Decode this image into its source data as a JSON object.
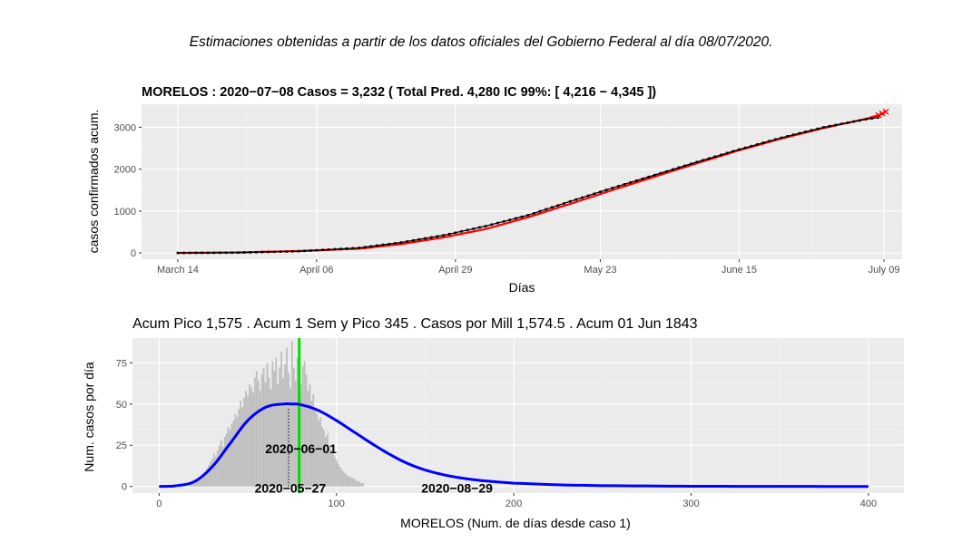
{
  "page": {
    "title": "Estimaciones obtenidas a partir de los datos oficiales del Gobierno Federal al día 08/07/2020."
  },
  "chart_data": [
    {
      "type": "line",
      "title": "MORELOS : 2020−07−08 Casos =  3,232 ( Total Pred. 4,280  IC 99%: [ 4,216 − 4,345 ])",
      "xlabel": "Días",
      "ylabel": "casos confirmados acum.",
      "x_ticks": [
        "March 14",
        "April 06",
        "April 29",
        "May 23",
        "June 15",
        "July 09"
      ],
      "y_ticks": [
        "0",
        "1000",
        "2000",
        "3000"
      ],
      "xlim": [
        "2020-03-08",
        "2020-07-12"
      ],
      "ylim": [
        -150,
        3550
      ],
      "grid": true,
      "series": [
        {
          "color": "#000000",
          "style": "points+line",
          "x": [
            "2020-03-14",
            "2020-03-24",
            "2020-04-03",
            "2020-04-13",
            "2020-04-20",
            "2020-04-27",
            "2020-05-04",
            "2020-05-11",
            "2020-05-18",
            "2020-05-25",
            "2020-06-01",
            "2020-06-08",
            "2020-06-15",
            "2020-06-22",
            "2020-06-29",
            "2020-07-06",
            "2020-07-08"
          ],
          "y": [
            0,
            8,
            40,
            120,
            250,
            420,
            640,
            900,
            1230,
            1550,
            1860,
            2170,
            2470,
            2750,
            3000,
            3190,
            3232
          ]
        },
        {
          "color": "#ff0000",
          "style": "line",
          "x": [
            "2020-03-14",
            "2020-03-24",
            "2020-04-03",
            "2020-04-13",
            "2020-04-20",
            "2020-04-27",
            "2020-05-04",
            "2020-05-11",
            "2020-05-18",
            "2020-05-25",
            "2020-06-01",
            "2020-06-08",
            "2020-06-15",
            "2020-06-22",
            "2020-06-29",
            "2020-07-06",
            "2020-07-09"
          ],
          "y": [
            0,
            12,
            45,
            100,
            210,
            370,
            570,
            850,
            1170,
            1500,
            1820,
            2140,
            2450,
            2730,
            2980,
            3200,
            3330
          ]
        }
      ]
    },
    {
      "type": "bar",
      "title": "Acum Pico 1,575 . Acum 1 Sem y Pico 345 . Casos por Mill 1,574.5 .  Acum 01 Jun  1843",
      "xlabel": "MORELOS  (Num. de días desde caso 1)",
      "ylabel": "Num. casos por día",
      "x_ticks": [
        "0",
        "100",
        "200",
        "300",
        "400"
      ],
      "y_ticks": [
        "0",
        "25",
        "50",
        "75"
      ],
      "xlim": [
        -15,
        420
      ],
      "ylim": [
        -4,
        90
      ],
      "grid": true,
      "bars_start_day": 18,
      "bars_color": "#bdbdbd",
      "bars": [
        1,
        2,
        2,
        3,
        4,
        5,
        6,
        8,
        9,
        11,
        13,
        15,
        17,
        20,
        18,
        22,
        25,
        28,
        24,
        30,
        32,
        36,
        34,
        38,
        40,
        44,
        42,
        47,
        52,
        48,
        54,
        58,
        55,
        62,
        60,
        57,
        66,
        70,
        64,
        58,
        68,
        72,
        63,
        75,
        66,
        59,
        76,
        70,
        78,
        62,
        72,
        82,
        66,
        74,
        84,
        69,
        60,
        88,
        72,
        64,
        78,
        70,
        62,
        73,
        76,
        68,
        58,
        62,
        52,
        56,
        48,
        44,
        40,
        42,
        36,
        34,
        30,
        32,
        25,
        22,
        20,
        18,
        16,
        14,
        12,
        10,
        9,
        8,
        7,
        6,
        6,
        5,
        5,
        4,
        3,
        3,
        2,
        2
      ],
      "curve_color": "#0000ff",
      "curve": {
        "x": [
          0,
          10,
          20,
          30,
          40,
          50,
          60,
          70,
          75,
          80,
          90,
          100,
          110,
          120,
          130,
          140,
          150,
          160,
          170,
          180,
          190,
          200,
          225,
          250,
          300,
          350,
          400
        ],
        "y": [
          0,
          0.5,
          3,
          12,
          26,
          40,
          48,
          50,
          50,
          49.5,
          46,
          40,
          33,
          26,
          19.5,
          14,
          10,
          7.2,
          5.2,
          3.8,
          2.8,
          2,
          1,
          0.5,
          0.15,
          0.05,
          0
        ]
      },
      "peak_line": {
        "x": 79,
        "color": "#00e000"
      },
      "dotted_line": {
        "x": 73,
        "y_top": 47
      },
      "annotations": [
        {
          "text": "2020−06−01",
          "x": 80,
          "y": 23
        },
        {
          "text": "2020−05−27",
          "x": 74,
          "y": -1
        },
        {
          "text": "2020−08−29",
          "x": 168,
          "y": -1
        }
      ]
    }
  ]
}
